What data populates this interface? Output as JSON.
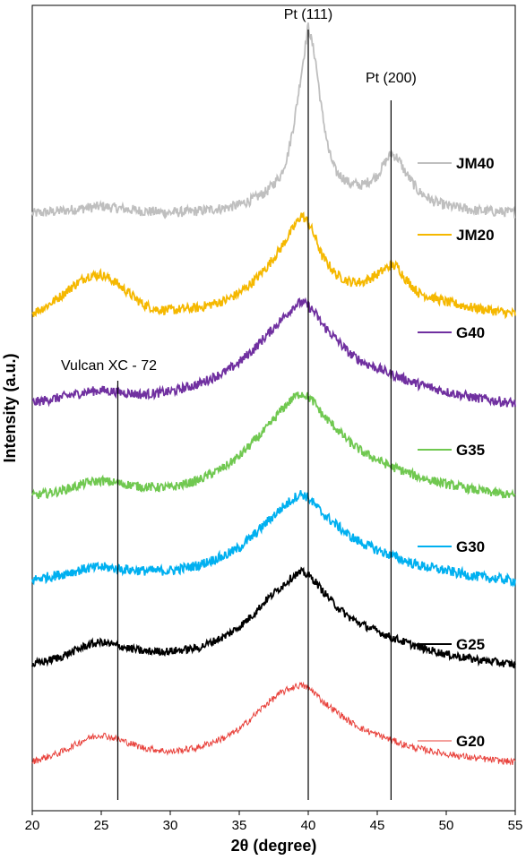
{
  "chart_data": {
    "type": "line",
    "title": "",
    "xlabel": "2θ (degree)",
    "ylabel": "Intensity (a.u.)",
    "xlim": [
      20,
      55
    ],
    "xticks": [
      20,
      25,
      30,
      35,
      40,
      45,
      50,
      55
    ],
    "y_ticks_shown": false,
    "grid": false,
    "legend_placement": "right, beside each curve",
    "annotations": [
      {
        "text": "Pt (111)",
        "x": 40.0
      },
      {
        "text": "Pt (200)",
        "x": 46.0
      },
      {
        "text": "Vulcan XC - 72",
        "x": 26.2
      }
    ],
    "series": [
      {
        "name": "JM40",
        "color": "#bfbfbf",
        "x": [
          20,
          22,
          24,
          25,
          26,
          28,
          30,
          32,
          34,
          35,
          36,
          37,
          38,
          38.5,
          39,
          39.5,
          40,
          40.5,
          41,
          41.5,
          42,
          43,
          44,
          45,
          45.5,
          46,
          46.5,
          47,
          48,
          49,
          50,
          52,
          55
        ],
        "y": [
          0.2,
          0.5,
          0.9,
          1.1,
          0.9,
          0.5,
          0.3,
          0.5,
          0.9,
          1.3,
          2.0,
          3.0,
          5.0,
          7.5,
          12,
          18,
          24,
          20,
          13,
          8,
          5.5,
          4.0,
          3.8,
          5.0,
          6.5,
          7.8,
          7.2,
          5.5,
          3.0,
          1.8,
          1.2,
          0.6,
          0.3
        ]
      },
      {
        "name": "JM20",
        "color": "#f5b800",
        "x": [
          20,
          21,
          22,
          23,
          24,
          25,
          26,
          27,
          28,
          29,
          30,
          32,
          34,
          35,
          36,
          37,
          38,
          39,
          39.5,
          40,
          40.5,
          41,
          42,
          43,
          44,
          45,
          46,
          46.5,
          47,
          48,
          50,
          52,
          55
        ],
        "y": [
          0.3,
          1.2,
          2.5,
          4.0,
          5.3,
          5.5,
          4.5,
          3.0,
          1.5,
          0.8,
          0.7,
          1.0,
          2.0,
          3.0,
          4.5,
          6.5,
          9.0,
          12,
          13.5,
          12.5,
          10.5,
          8.0,
          5.5,
          4.5,
          4.5,
          5.5,
          6.8,
          6.5,
          5.0,
          3.0,
          1.8,
          1.0,
          0.2
        ]
      },
      {
        "name": "G40",
        "color": "#7030a0",
        "x": [
          20,
          22,
          24,
          25,
          26,
          28,
          30,
          32,
          34,
          35,
          36,
          37,
          38,
          39,
          39.5,
          40,
          40.5,
          41,
          42,
          43,
          44,
          45,
          46,
          47,
          48,
          50,
          52,
          55
        ],
        "y": [
          0.3,
          1.0,
          1.8,
          2.0,
          1.8,
          1.4,
          1.8,
          2.8,
          4.5,
          5.8,
          7.5,
          9.5,
          11.5,
          13.5,
          14,
          13.5,
          12.5,
          11,
          9.0,
          7.0,
          5.8,
          5.0,
          4.2,
          3.5,
          2.8,
          1.8,
          1.0,
          0.2
        ]
      },
      {
        "name": "G35",
        "color": "#70c850",
        "x": [
          20,
          22,
          24,
          25,
          26,
          28,
          30,
          32,
          34,
          35,
          36,
          37,
          38,
          39,
          39.5,
          40,
          40.5,
          41,
          42,
          43,
          44,
          45,
          46,
          47,
          48,
          50,
          52,
          55
        ],
        "y": [
          0.3,
          1.0,
          2.2,
          2.5,
          2.2,
          1.6,
          1.5,
          2.5,
          4.5,
          6.0,
          8.0,
          10.0,
          12.5,
          14.5,
          15,
          14.5,
          13.5,
          12,
          10.0,
          8.0,
          6.5,
          5.5,
          4.5,
          3.8,
          3.0,
          2.0,
          1.2,
          0.3
        ]
      },
      {
        "name": "G30",
        "color": "#00b0f0",
        "x": [
          20,
          22,
          24,
          25,
          26,
          28,
          30,
          32,
          34,
          35,
          36,
          37,
          38,
          39,
          39.5,
          40,
          40.5,
          41,
          42,
          43,
          44,
          45,
          46,
          47,
          48,
          50,
          52,
          55
        ],
        "y": [
          0.3,
          1.0,
          1.8,
          2.0,
          1.8,
          1.5,
          1.5,
          2.2,
          3.5,
          4.5,
          6.0,
          7.8,
          9.5,
          11,
          11.5,
          11,
          10,
          9.0,
          7.5,
          6.0,
          5.0,
          4.2,
          3.5,
          2.8,
          2.2,
          1.5,
          0.8,
          0.2
        ]
      },
      {
        "name": "G25",
        "color": "#000000",
        "x": [
          20,
          22,
          24,
          25,
          26,
          28,
          30,
          32,
          34,
          35,
          36,
          37,
          38,
          39,
          39.5,
          40,
          40.5,
          41,
          42,
          43,
          44,
          45,
          46,
          47,
          48,
          50,
          52,
          55
        ],
        "y": [
          0.3,
          1.5,
          3.5,
          4.0,
          3.5,
          2.5,
          2.5,
          3.0,
          5.0,
          6.5,
          8.5,
          11,
          13,
          15,
          15.5,
          15,
          14,
          12.5,
          10,
          8.0,
          6.8,
          5.8,
          4.8,
          4.0,
          3.2,
          2.0,
          1.2,
          0.3
        ]
      },
      {
        "name": "G20",
        "color": "#e8403a",
        "x": [
          20,
          22,
          24,
          25,
          26,
          28,
          30,
          32,
          34,
          35,
          36,
          37,
          38,
          39,
          39.5,
          40,
          40.5,
          41,
          42,
          43,
          44,
          45,
          46,
          47,
          48,
          50,
          52,
          55
        ],
        "y": [
          0.3,
          2.0,
          4.8,
          5.5,
          4.8,
          3.0,
          2.2,
          3.0,
          5.0,
          6.5,
          9.0,
          11.5,
          13.5,
          14.8,
          15,
          14.5,
          13.5,
          12,
          10,
          8.0,
          6.5,
          5.5,
          4.5,
          3.5,
          2.8,
          1.8,
          1.0,
          0.2
        ]
      }
    ]
  }
}
